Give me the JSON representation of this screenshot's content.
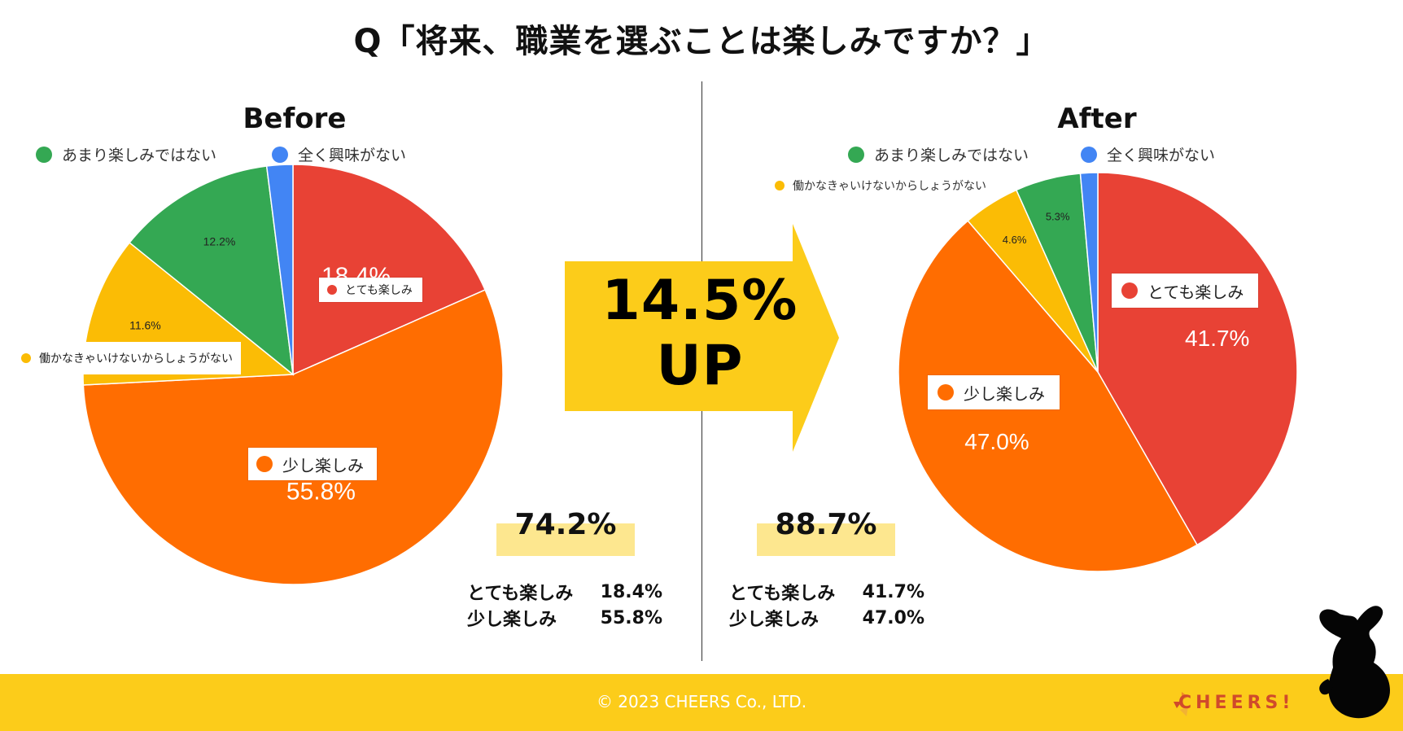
{
  "title": "Q「将来、職業を選ぶことは楽しみですか？」",
  "colors": {
    "very": "#e84235",
    "little": "#ff6d01",
    "must": "#fbbc05",
    "not_really": "#34a853",
    "no_interest": "#4285f4",
    "banner": "#fccc1a",
    "total_bg": "#fde78f"
  },
  "chart_data": [
    {
      "type": "pie",
      "title": "Before",
      "legend": [
        "あまり楽しみではない",
        "全く興味がない",
        "働かなきゃいけないからしょうがない"
      ],
      "slices": [
        {
          "name": "とても楽しみ",
          "value": 18.4,
          "label": "18.4%",
          "color": "#e84235"
        },
        {
          "name": "少し楽しみ",
          "value": 55.8,
          "label": "55.8%",
          "color": "#ff6d01"
        },
        {
          "name": "働かなきゃいけないからしょうがない",
          "value": 11.6,
          "label": "11.6%",
          "color": "#fbbc05"
        },
        {
          "name": "あまり楽しみではない",
          "value": 12.2,
          "label": "12.2%",
          "color": "#34a853"
        },
        {
          "name": "全く興味がない",
          "value": 2.0,
          "label": "",
          "color": "#4285f4"
        }
      ]
    },
    {
      "type": "pie",
      "title": "After",
      "legend": [
        "あまり楽しみではない",
        "全く興味がない",
        "働かなきゃいけないからしょうがない"
      ],
      "slices": [
        {
          "name": "とても楽しみ",
          "value": 41.7,
          "label": "41.7%",
          "color": "#e84235"
        },
        {
          "name": "少し楽しみ",
          "value": 47.0,
          "label": "47.0%",
          "color": "#ff6d01"
        },
        {
          "name": "働かなきゃいけないからしょうがない",
          "value": 4.6,
          "label": "4.6%",
          "color": "#fbbc05"
        },
        {
          "name": "あまり楽しみではない",
          "value": 5.3,
          "label": "5.3%",
          "color": "#34a853"
        },
        {
          "name": "全く興味がない",
          "value": 1.4,
          "label": "",
          "color": "#4285f4"
        }
      ]
    }
  ],
  "labels": {
    "very": "とても楽しみ",
    "little": "少し楽しみ",
    "must": "働かなきゃいけないからしょうがない",
    "not_really": "あまり楽しみではない",
    "no_interest": "全く興味がない"
  },
  "arrow": {
    "line1": "14.5%",
    "line2": "UP"
  },
  "before_summary": {
    "total": "74.2%",
    "rows": [
      {
        "label": "とても楽しみ",
        "value": "18.4%"
      },
      {
        "label": "少し楽しみ",
        "value": "55.8%"
      }
    ]
  },
  "after_summary": {
    "total": "88.7%",
    "rows": [
      {
        "label": "とても楽しみ",
        "value": "41.7%"
      },
      {
        "label": "少し楽しみ",
        "value": "47.0%"
      }
    ]
  },
  "footer": {
    "copyright": "© 2023 CHEERS Co., LTD.",
    "brand": "CHEERS!"
  }
}
